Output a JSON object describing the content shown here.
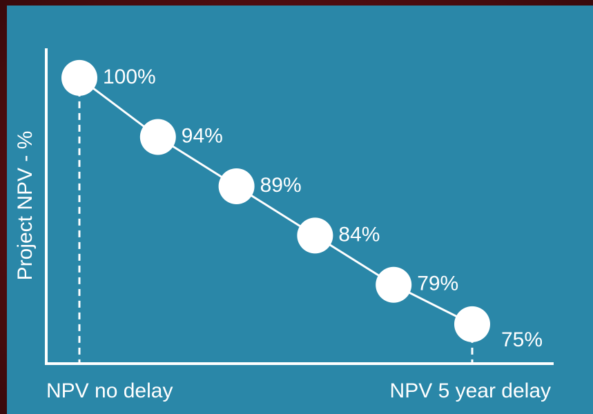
{
  "chart_data": {
    "type": "line",
    "y_axis_label": "Project NPV - %",
    "categories": [
      "NPV no delay",
      null,
      null,
      null,
      null,
      "NPV 5 year delay"
    ],
    "values": [
      100,
      94,
      89,
      84,
      79,
      75
    ],
    "value_labels": [
      "100%",
      "94%",
      "89%",
      "84%",
      "79%",
      "75%"
    ],
    "color": "#ffffff",
    "ylim": [
      71,
      103
    ]
  }
}
